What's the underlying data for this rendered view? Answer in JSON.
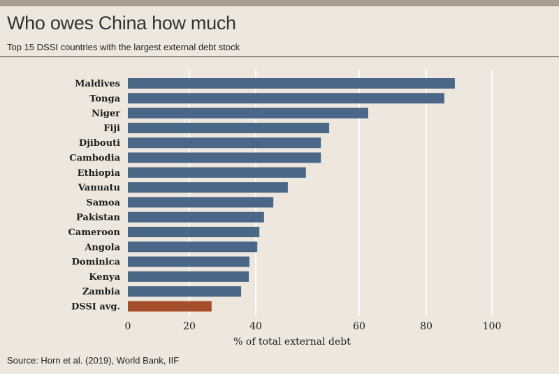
{
  "header": {
    "title": "Who owes China how much",
    "subtitle": "Top 15 DSSI countries with the largest external debt stock"
  },
  "footer": {
    "source": "Source: Horn et al. (2019), World Bank, IIF"
  },
  "colors": {
    "bar": "#4b6787",
    "highlight": "#a44e2c",
    "grid": "#ffffff"
  },
  "chart_data": {
    "type": "bar",
    "orientation": "horizontal",
    "title": "Who owes China how much",
    "xlabel": "% of total external debt",
    "ylabel": "",
    "xlim": [
      0,
      100
    ],
    "xticks": [
      0,
      20,
      40,
      60,
      80,
      100
    ],
    "grid": true,
    "categories": [
      "Maldives",
      "Tonga",
      "Niger",
      "Fiji",
      "Djibouti",
      "Cambodia",
      "Ethiopia",
      "Vanuatu",
      "Samoa",
      "Pakistan",
      "Cameroon",
      "Angola",
      "Dominica",
      "Kenya",
      "Zambia",
      "DSSI avg."
    ],
    "values": [
      88.7,
      85.5,
      62.7,
      54.2,
      52.6,
      52.6,
      49.7,
      46.2,
      43.4,
      41.6,
      40.7,
      40.3,
      38.1,
      37.9,
      35.6,
      26.7
    ],
    "highlight": [
      "DSSI avg."
    ]
  }
}
